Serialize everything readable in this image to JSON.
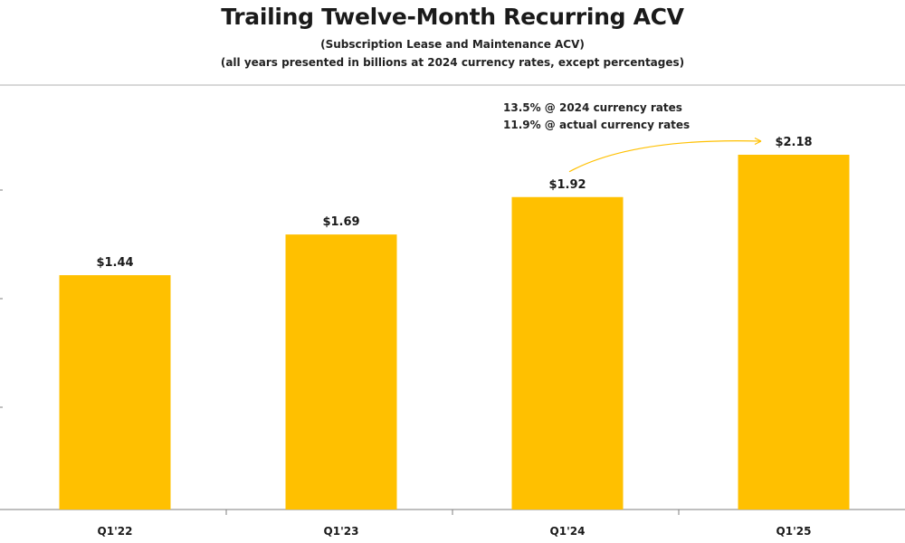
{
  "header": {
    "title": "Trailing Twelve-Month Recurring ACV",
    "subtitle_line1": "(Subscription Lease and Maintenance ACV)",
    "subtitle_line2": "(all years presented in billions at 2024 currency rates, except percentages)"
  },
  "annotation": {
    "line1": "13.5% @ 2024 currency rates",
    "line2": "11.9% @ actual currency rates"
  },
  "colors": {
    "bar": "#FFC000",
    "axis": "#7f7f7f",
    "arrow": "#FFC000"
  },
  "chart_data": {
    "type": "bar",
    "title": "Trailing Twelve-Month Recurring ACV",
    "categories": [
      "Q1'22",
      "Q1'23",
      "Q1'24",
      "Q1'25"
    ],
    "values": [
      1.44,
      1.69,
      1.92,
      2.18
    ],
    "data_labels": [
      "$1.44",
      "$1.69",
      "$1.92",
      "$2.18"
    ],
    "ylim": [
      0,
      2.5
    ],
    "grid": false,
    "legend": "none"
  }
}
